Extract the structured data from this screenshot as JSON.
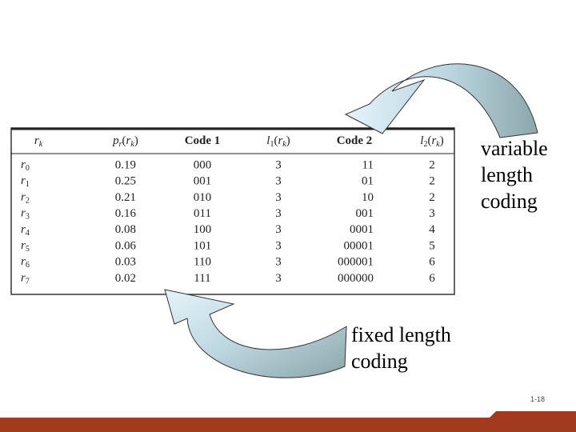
{
  "table": {
    "header": [
      [
        {
          "text": "r",
          "italic": true
        },
        {
          "text": "k",
          "italic": true,
          "sub": true
        }
      ],
      [
        {
          "text": "p",
          "italic": true
        },
        {
          "text": "r",
          "italic": true,
          "sub": true
        },
        {
          "text": "(",
          "italic": false
        },
        {
          "text": "r",
          "italic": true
        },
        {
          "text": "k",
          "italic": true,
          "sub": true
        },
        {
          "text": ")",
          "italic": false
        }
      ],
      [
        {
          "text": "Code 1",
          "italic": false,
          "bold": true
        }
      ],
      [
        {
          "text": "l",
          "italic": true
        },
        {
          "text": "1",
          "italic": false,
          "sub": true
        },
        {
          "text": "(",
          "italic": false
        },
        {
          "text": "r",
          "italic": true
        },
        {
          "text": "k",
          "italic": true,
          "sub": true
        },
        {
          "text": ")",
          "italic": false
        }
      ],
      [
        {
          "text": "Code 2",
          "italic": false,
          "bold": true
        }
      ],
      [
        {
          "text": "l",
          "italic": true
        },
        {
          "text": "2",
          "italic": false,
          "sub": true
        },
        {
          "text": "(",
          "italic": false
        },
        {
          "text": "r",
          "italic": true
        },
        {
          "text": "k",
          "italic": true,
          "sub": true
        },
        {
          "text": ")",
          "italic": false
        }
      ]
    ],
    "rows": [
      [
        {
          "symbol": "r",
          "index": "0"
        },
        "0.19",
        "000",
        3,
        "11",
        2
      ],
      [
        {
          "symbol": "r",
          "index": "1"
        },
        "0.25",
        "001",
        3,
        "01",
        2
      ],
      [
        {
          "symbol": "r",
          "index": "2"
        },
        "0.21",
        "010",
        3,
        "10",
        2
      ],
      [
        {
          "symbol": "r",
          "index": "3"
        },
        "0.16",
        "011",
        3,
        "001",
        3
      ],
      [
        {
          "symbol": "r",
          "index": "4"
        },
        "0.08",
        "100",
        3,
        "0001",
        4
      ],
      [
        {
          "symbol": "r",
          "index": "5"
        },
        "0.06",
        "101",
        3,
        "00001",
        5
      ],
      [
        {
          "symbol": "r",
          "index": "6"
        },
        "0.03",
        "110",
        3,
        "000001",
        6
      ],
      [
        {
          "symbol": "r",
          "index": "7"
        },
        "0.02",
        "111",
        3,
        "000000",
        6
      ]
    ]
  },
  "annotations": {
    "variable": [
      "variable",
      "length",
      "coding"
    ],
    "fixed": [
      "fixed length",
      "coding"
    ]
  },
  "page_number": "1-18"
}
